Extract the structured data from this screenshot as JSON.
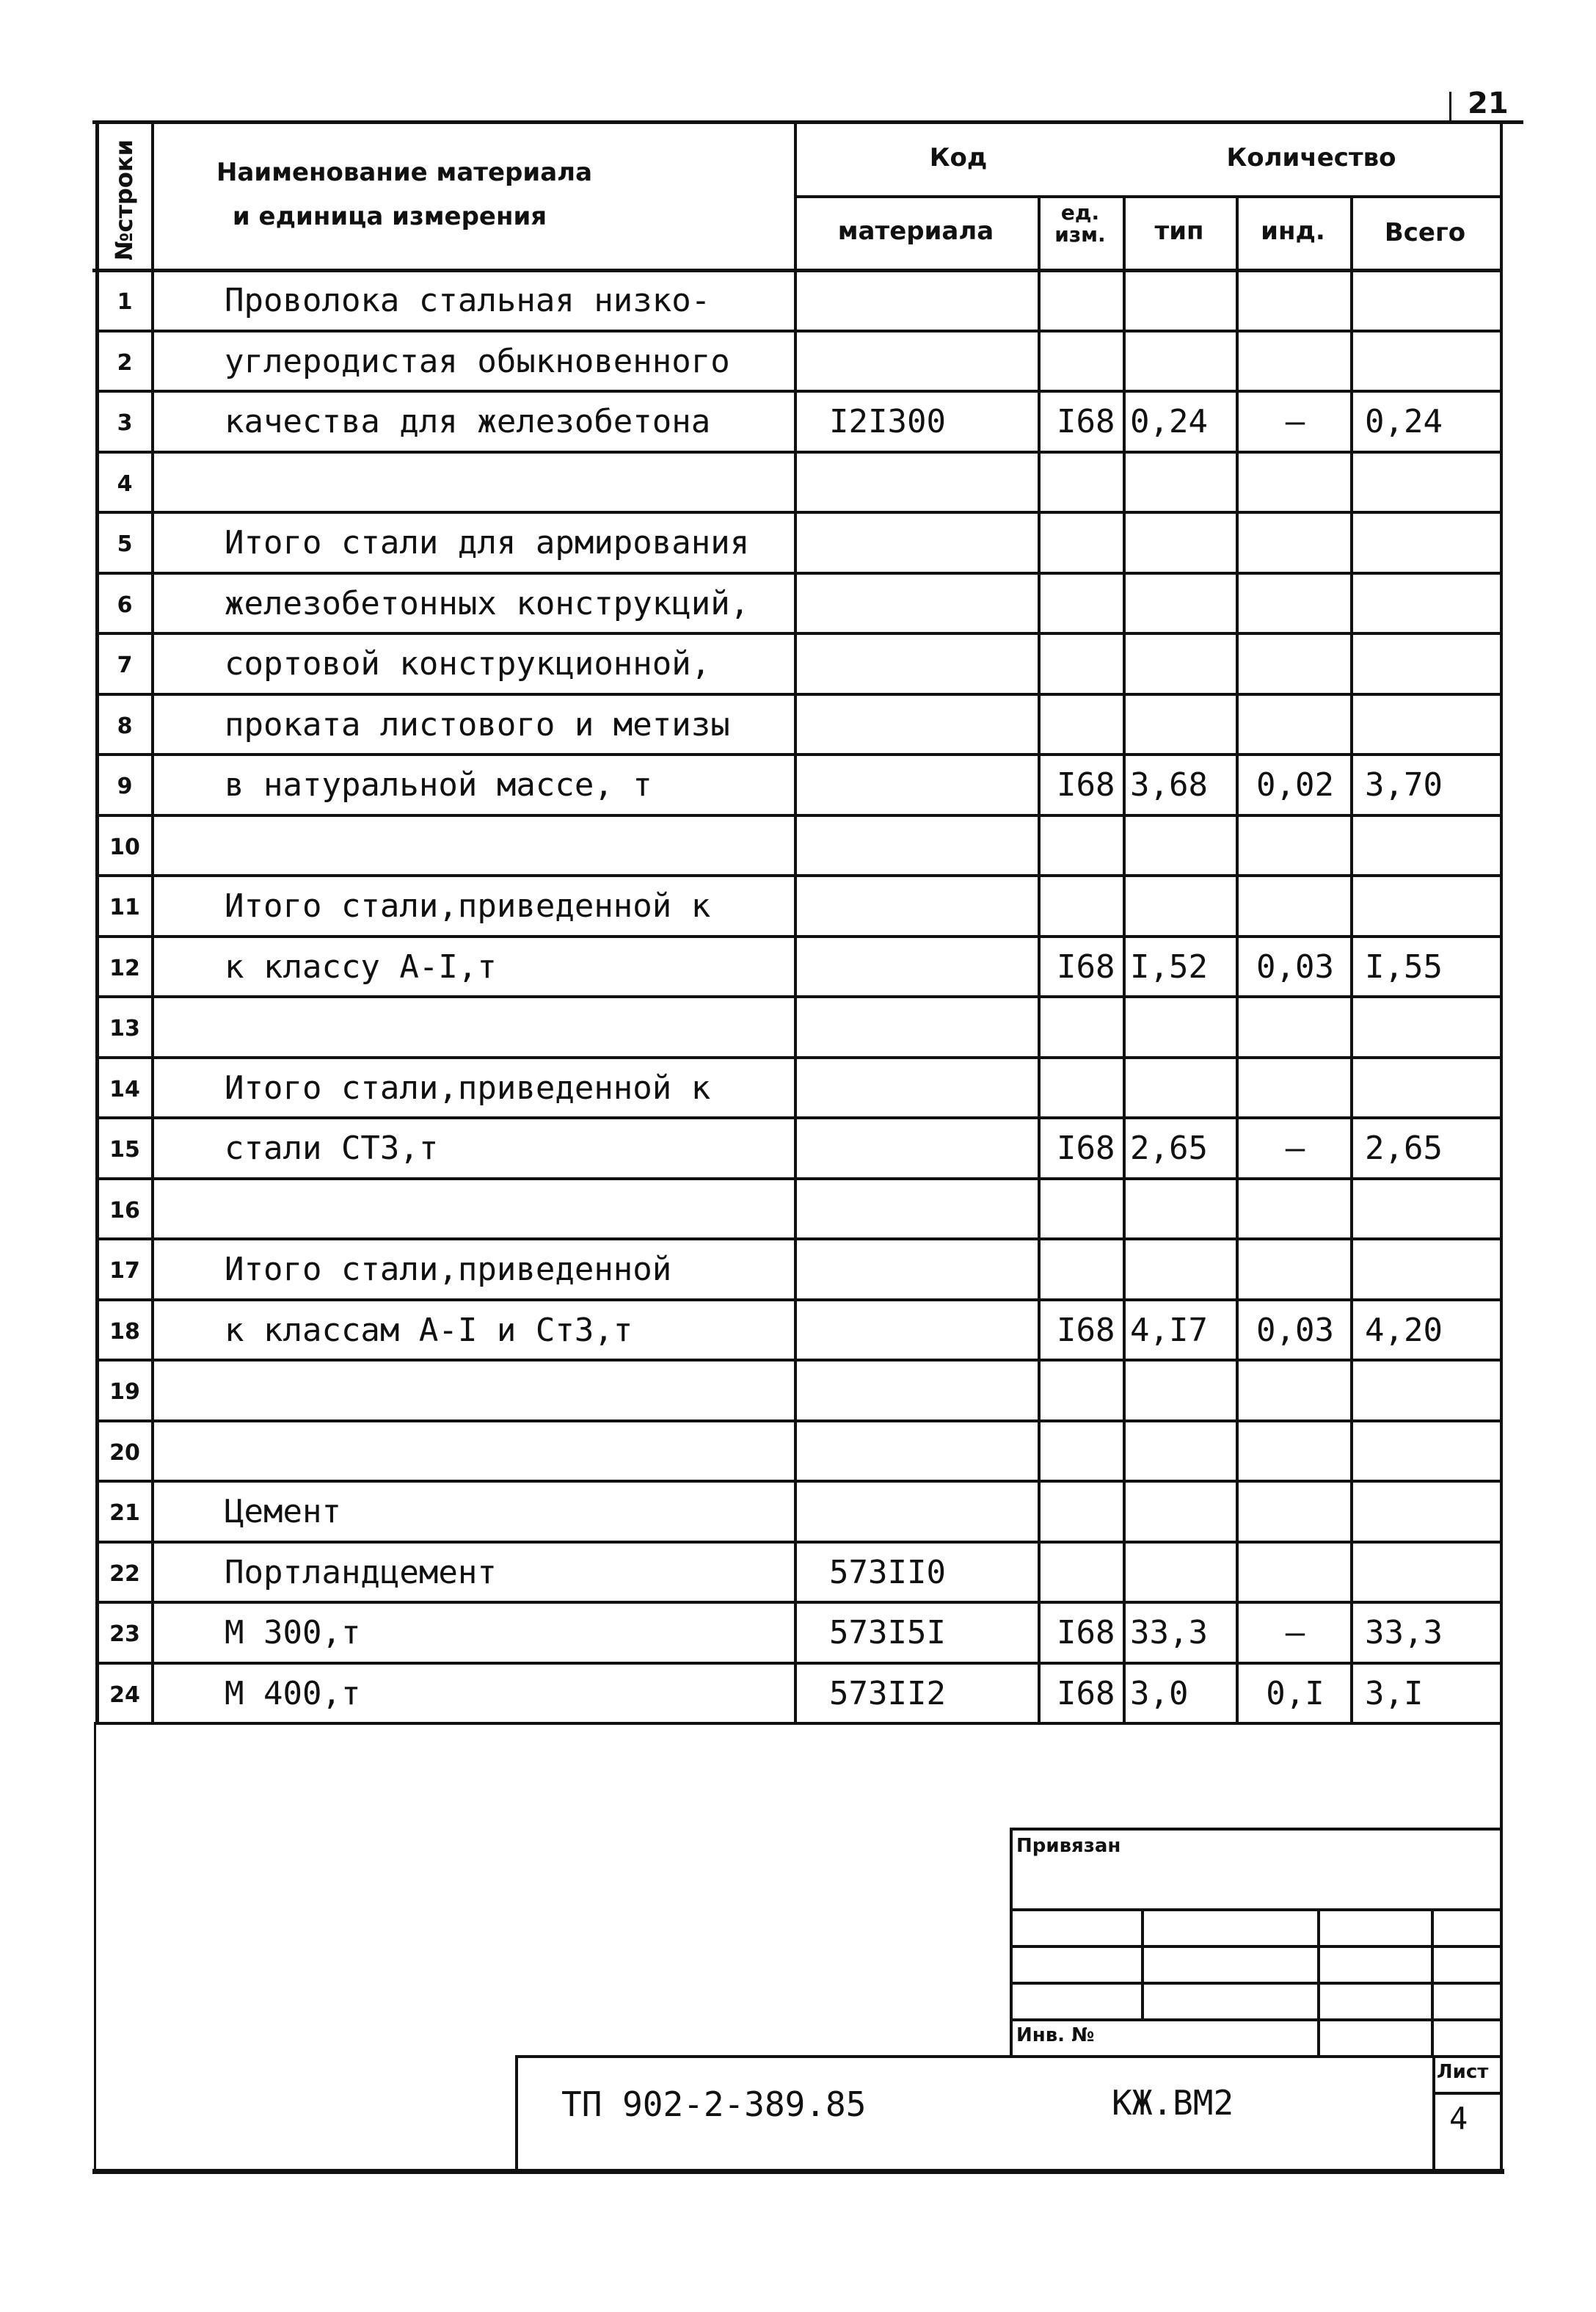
{
  "page_number": "21",
  "header": {
    "row_no": "№строки",
    "name": "Наименование материала",
    "name2": "и единица измерения",
    "code": "Код",
    "code_material": "материала",
    "unit": "ед.",
    "unit2": "изм.",
    "quantity": "Количество",
    "typ": "тип",
    "ind": "инд.",
    "total": "Всего"
  },
  "rows": [
    {
      "n": "1",
      "name": "Проволока стальная низко-",
      "code": "",
      "unit": "",
      "typ": "",
      "ind": "",
      "total": ""
    },
    {
      "n": "2",
      "name": "углеродистая обыкновенного",
      "code": "",
      "unit": "",
      "typ": "",
      "ind": "",
      "total": ""
    },
    {
      "n": "3",
      "name": "качества для железобетона",
      "code": "I2I300",
      "unit": "I68",
      "typ": "0,24",
      "ind": "–",
      "total": "0,24"
    },
    {
      "n": "4",
      "name": "",
      "code": "",
      "unit": "",
      "typ": "",
      "ind": "",
      "total": ""
    },
    {
      "n": "5",
      "name": "Итого стали для армирования",
      "code": "",
      "unit": "",
      "typ": "",
      "ind": "",
      "total": ""
    },
    {
      "n": "6",
      "name": "железобетонных конструкций,",
      "code": "",
      "unit": "",
      "typ": "",
      "ind": "",
      "total": ""
    },
    {
      "n": "7",
      "name": "сортовой конструкционной,",
      "code": "",
      "unit": "",
      "typ": "",
      "ind": "",
      "total": ""
    },
    {
      "n": "8",
      "name": "проката листового и метизы",
      "code": "",
      "unit": "",
      "typ": "",
      "ind": "",
      "total": ""
    },
    {
      "n": "9",
      "name": "в натуральной массе,     т",
      "code": "",
      "unit": "I68",
      "typ": "3,68",
      "ind": "0,02",
      "total": "3,70"
    },
    {
      "n": "10",
      "name": "",
      "code": "",
      "unit": "",
      "typ": "",
      "ind": "",
      "total": ""
    },
    {
      "n": "11",
      "name": "Итого стали,приведенной к",
      "code": "",
      "unit": "",
      "typ": "",
      "ind": "",
      "total": ""
    },
    {
      "n": "12",
      "name": "к классу А-I,т",
      "code": "",
      "unit": "I68",
      "typ": "I,52",
      "ind": "0,03",
      "total": "I,55"
    },
    {
      "n": "13",
      "name": "",
      "code": "",
      "unit": "",
      "typ": "",
      "ind": "",
      "total": ""
    },
    {
      "n": "14",
      "name": "Итого стали,приведенной к",
      "code": "",
      "unit": "",
      "typ": "",
      "ind": "",
      "total": ""
    },
    {
      "n": "15",
      "name": "стали СТ3,т",
      "code": "",
      "unit": "I68",
      "typ": "2,65",
      "ind": "–",
      "total": "2,65"
    },
    {
      "n": "16",
      "name": "",
      "code": "",
      "unit": "",
      "typ": "",
      "ind": "",
      "total": ""
    },
    {
      "n": "17",
      "name": "Итого стали,приведенной",
      "code": "",
      "unit": "",
      "typ": "",
      "ind": "",
      "total": ""
    },
    {
      "n": "18",
      "name": "к классам А-I и Ст3,т",
      "code": "",
      "unit": "I68",
      "typ": "4,I7",
      "ind": "0,03",
      "total": "4,20"
    },
    {
      "n": "19",
      "name": "",
      "code": "",
      "unit": "",
      "typ": "",
      "ind": "",
      "total": ""
    },
    {
      "n": "20",
      "name": "",
      "code": "",
      "unit": "",
      "typ": "",
      "ind": "",
      "total": ""
    },
    {
      "n": "21",
      "name": "Цемент",
      "code": "",
      "unit": "",
      "typ": "",
      "ind": "",
      "total": ""
    },
    {
      "n": "22",
      "name": "Портландцемент",
      "code": "573II0",
      "unit": "",
      "typ": "",
      "ind": "",
      "total": ""
    },
    {
      "n": "23",
      "name": "М 300,т",
      "code": "573I5I",
      "unit": "I68",
      "typ": "33,3",
      "ind": "–",
      "total": "33,3"
    },
    {
      "n": "24",
      "name": "М 400,т",
      "code": "573II2",
      "unit": "I68",
      "typ": "3,0",
      "ind": "0,I",
      "total": "3,I"
    }
  ],
  "stamp": {
    "bound": "Привязан",
    "inv": "Инв. №",
    "doc": "ТП 902-2-389.85",
    "mark": "КЖ.ВМ2",
    "sheet_label": "Лист",
    "sheet": "4"
  }
}
